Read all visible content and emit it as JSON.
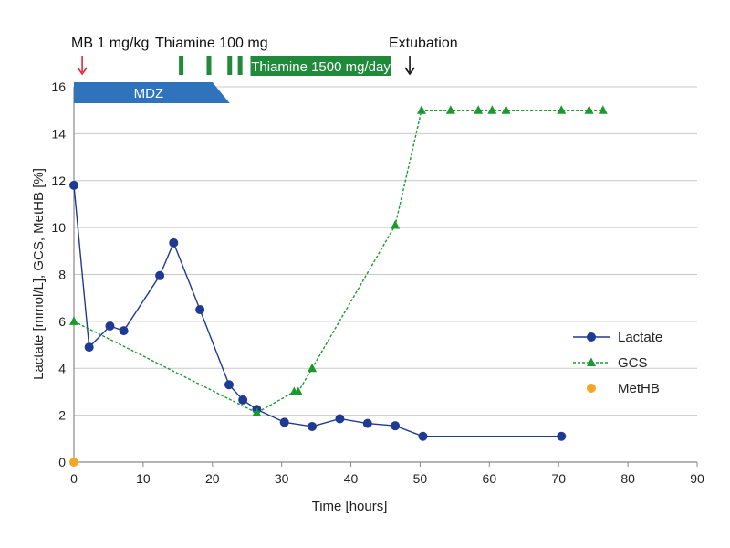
{
  "chart_data": {
    "type": "line",
    "xlabel": "Time [hours]",
    "ylabel": "Lactate [mmol/L], GCS, MetHB [%]",
    "xlim": [
      0,
      90
    ],
    "ylim": [
      0,
      16
    ],
    "xticks": [
      0,
      10,
      20,
      30,
      40,
      50,
      60,
      70,
      80,
      90
    ],
    "yticks": [
      0,
      2,
      4,
      6,
      8,
      10,
      12,
      14,
      16
    ],
    "grid": "horizontal",
    "legend_position": "right",
    "series": [
      {
        "name": "Lactate",
        "color": "#1f3a93",
        "marker": "circle",
        "line": "solid",
        "x": [
          0,
          2.2,
          5.2,
          7.2,
          12.4,
          14.4,
          18.2,
          22.4,
          24.4,
          26.4,
          30.4,
          34.4,
          38.4,
          42.4,
          46.4,
          50.4,
          70.4
        ],
        "y": [
          11.8,
          4.9,
          5.8,
          5.6,
          7.95,
          9.35,
          6.5,
          3.3,
          2.65,
          2.25,
          1.7,
          1.52,
          1.85,
          1.65,
          1.55,
          1.1,
          1.1
        ]
      },
      {
        "name": "GCS",
        "color": "#1a9a2c",
        "marker": "triangle",
        "line": "dashed",
        "x": [
          0,
          26.4,
          31.8,
          32.4,
          34.4,
          46.4,
          50.2,
          54.4,
          58.4,
          60.4,
          62.4,
          70.4,
          74.4,
          76.4
        ],
        "y": [
          6,
          2.1,
          3,
          3,
          4,
          10.1,
          15,
          15,
          15,
          15,
          15,
          15,
          15,
          15
        ]
      },
      {
        "name": "MetHB",
        "color": "#f5a623",
        "marker": "circle",
        "line": "none",
        "x": [
          0
        ],
        "y": [
          0
        ]
      }
    ],
    "annotations": {
      "mb_label": "MB 1 mg/kg",
      "mb_time": 1.2,
      "mb_color": "#e8262a",
      "thiamine_label": "Thiamine 100 mg",
      "thiamine_times": [
        15.5,
        19.5,
        22.5,
        24
      ],
      "thiamine_infusion_label": "Thiamine 1500 mg/day",
      "thiamine_infusion_start": 25.5,
      "thiamine_infusion_end": 45.8,
      "thiamine_color": "#1f8a3a",
      "extubation_label": "Extubation",
      "extubation_time": 48.5,
      "mdz_label": "MDZ",
      "mdz_start": 0,
      "mdz_end_top": 20,
      "mdz_end_bottom": 22.5,
      "mdz_color": "#2f73bd"
    }
  }
}
